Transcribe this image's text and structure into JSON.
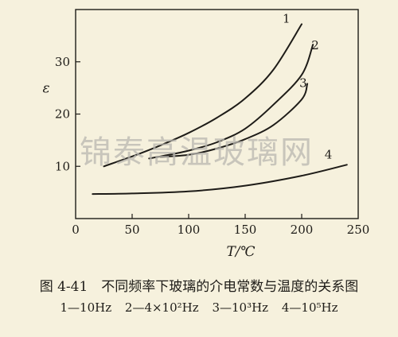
{
  "chart_data": {
    "type": "line",
    "title": "图 4-41　不同频率下玻璃的介电常数与温度的关系图",
    "xlabel": "T/℃",
    "ylabel": "ε",
    "xlim": [
      0,
      250
    ],
    "ylim": [
      0,
      40
    ],
    "x_ticks": [
      0,
      50,
      100,
      150,
      200,
      250
    ],
    "y_ticks": [
      10,
      20,
      30
    ],
    "grid": false,
    "series": [
      {
        "name": "1",
        "x": [
          25,
          50,
          75,
          100,
          125,
          150,
          175,
          200
        ],
        "y": [
          10.0,
          11.9,
          14.0,
          16.4,
          19.3,
          23.0,
          28.5,
          37.2
        ]
      },
      {
        "name": "2",
        "x": [
          65,
          80,
          100,
          125,
          150,
          175,
          200,
          210
        ],
        "y": [
          11.5,
          12.1,
          13.0,
          14.6,
          17.2,
          21.8,
          27.5,
          33.3
        ]
      },
      {
        "name": "3",
        "x": [
          75,
          100,
          125,
          150,
          175,
          200,
          205
        ],
        "y": [
          11.8,
          12.2,
          13.4,
          15.2,
          17.9,
          22.8,
          25.8
        ]
      },
      {
        "name": "4",
        "x": [
          15,
          50,
          100,
          150,
          200,
          240
        ],
        "y": [
          4.7,
          4.8,
          5.2,
          6.3,
          8.2,
          10.3
        ]
      }
    ]
  },
  "watermark": "锦泰高温玻璃网",
  "caption": {
    "title": "图 4-41　不同频率下玻璃的介电常数与温度的关系图",
    "legend": [
      "1—10Hz",
      "2—4×10²Hz",
      "3—10³Hz",
      "4—10⁵Hz"
    ]
  }
}
